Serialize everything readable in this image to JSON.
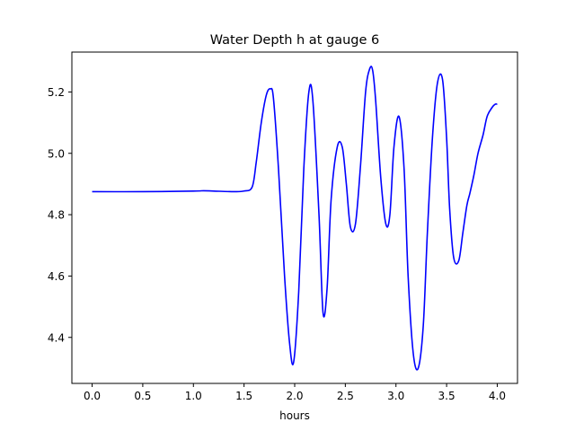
{
  "chart_data": {
    "type": "line",
    "title": "Water Depth h at gauge 6",
    "xlabel": "hours",
    "ylabel": "",
    "xlim": [
      -0.2,
      4.2
    ],
    "ylim": [
      4.25,
      5.33
    ],
    "x_ticks": [
      0.0,
      0.5,
      1.0,
      1.5,
      2.0,
      2.5,
      3.0,
      3.5,
      4.0
    ],
    "x_tick_labels": [
      "0.0",
      "0.5",
      "1.0",
      "1.5",
      "2.0",
      "2.5",
      "3.0",
      "3.5",
      "4.0"
    ],
    "y_ticks": [
      4.4,
      4.6,
      4.8,
      5.0,
      5.2
    ],
    "y_tick_labels": [
      "4.4",
      "4.6",
      "4.8",
      "5.0",
      "5.2"
    ],
    "grid": false,
    "legend": "none",
    "series": [
      {
        "color": "#0000ff",
        "x": [
          0.0,
          0.5,
          1.0,
          1.1,
          1.2,
          1.4,
          1.5,
          1.58,
          1.62,
          1.67,
          1.72,
          1.76,
          1.79,
          1.84,
          1.9,
          1.95,
          1.99,
          2.04,
          2.09,
          2.14,
          2.18,
          2.24,
          2.28,
          2.32,
          2.36,
          2.42,
          2.47,
          2.51,
          2.55,
          2.6,
          2.65,
          2.7,
          2.74,
          2.77,
          2.8,
          2.85,
          2.9,
          2.94,
          2.98,
          3.03,
          3.08,
          3.12,
          3.17,
          3.22,
          3.27,
          3.31,
          3.36,
          3.41,
          3.46,
          3.5,
          3.53,
          3.57,
          3.62,
          3.66,
          3.7,
          3.73,
          3.77,
          3.81,
          3.86,
          3.9,
          3.95,
          3.98,
          4.0
        ],
        "y": [
          4.875,
          4.875,
          4.877,
          4.878,
          4.877,
          4.875,
          4.877,
          4.89,
          4.97,
          5.1,
          5.19,
          5.21,
          5.18,
          4.95,
          4.6,
          4.38,
          4.32,
          4.55,
          4.95,
          5.2,
          5.17,
          4.8,
          4.48,
          4.56,
          4.85,
          5.02,
          5.02,
          4.9,
          4.76,
          4.77,
          4.96,
          5.2,
          5.275,
          5.27,
          5.17,
          4.92,
          4.77,
          4.8,
          5.02,
          5.12,
          4.95,
          4.6,
          4.35,
          4.3,
          4.44,
          4.74,
          5.05,
          5.23,
          5.24,
          5.05,
          4.82,
          4.66,
          4.65,
          4.74,
          4.83,
          4.87,
          4.93,
          5.0,
          5.06,
          5.12,
          5.15,
          5.16,
          5.16
        ]
      }
    ]
  }
}
